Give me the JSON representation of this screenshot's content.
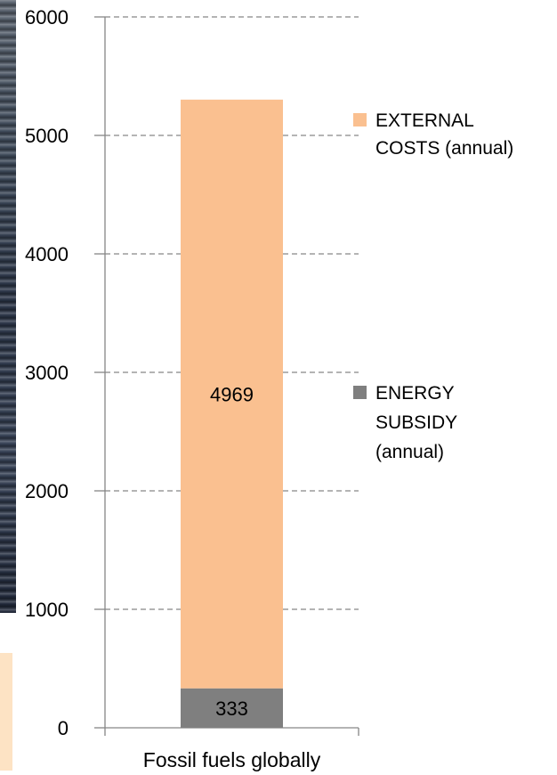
{
  "chart_data": {
    "type": "bar",
    "stacked": true,
    "categories": [
      "Fossil fuels globally"
    ],
    "series": [
      {
        "name": "ENERGY SUBSIDY (annual)",
        "values": [
          333
        ],
        "color": "#7f7f7f"
      },
      {
        "name": "EXTERNAL COSTS (annual)",
        "values": [
          4969
        ],
        "color": "#fac090"
      }
    ],
    "data_labels": [
      "333",
      "4969"
    ],
    "legend_lines": {
      "external": [
        "EXTERNAL",
        "COSTS (annual)"
      ],
      "subsidy": [
        "ENERGY",
        "SUBSIDY",
        "(annual)"
      ]
    },
    "ylim": [
      0,
      6000
    ],
    "yticks": [
      "0",
      "1000",
      "2000",
      "3000",
      "4000",
      "5000",
      "6000"
    ],
    "grid": true,
    "grid_style": "dashed",
    "legend_position": "right"
  }
}
